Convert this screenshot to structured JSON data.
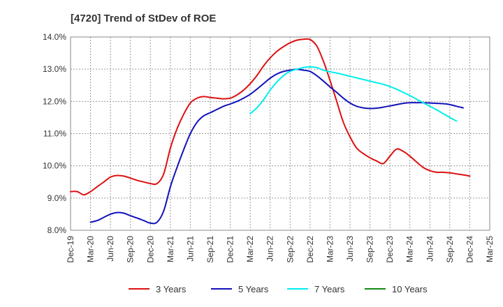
{
  "chart_data": {
    "type": "line",
    "title": "[4720]  Trend of StDev of ROE",
    "xlabel": "",
    "ylabel": "",
    "x_ticks": [
      "Dec-19",
      "Mar-20",
      "Jun-20",
      "Sep-20",
      "Dec-20",
      "Mar-21",
      "Jun-21",
      "Sep-21",
      "Dec-21",
      "Mar-22",
      "Jun-22",
      "Sep-22",
      "Dec-22",
      "Mar-23",
      "Jun-23",
      "Sep-23",
      "Dec-23",
      "Mar-24",
      "Jun-24",
      "Sep-24",
      "Dec-24",
      "Mar-25"
    ],
    "y_ticks": [
      "8.0%",
      "9.0%",
      "10.0%",
      "11.0%",
      "12.0%",
      "13.0%",
      "14.0%"
    ],
    "ylim": [
      8.0,
      14.0
    ],
    "y_unit": "%",
    "grid": true,
    "legend_position": "bottom",
    "series": [
      {
        "name": "3 Years",
        "color": "#dd1111",
        "points": [
          [
            0,
            9.2
          ],
          [
            1,
            9.2
          ],
          [
            2,
            9.1
          ],
          [
            3,
            9.2
          ],
          [
            4,
            9.35
          ],
          [
            5,
            9.5
          ],
          [
            6,
            9.65
          ],
          [
            7,
            9.7
          ],
          [
            8,
            9.68
          ],
          [
            9,
            9.62
          ],
          [
            10,
            9.55
          ],
          [
            11,
            9.5
          ],
          [
            12,
            9.45
          ],
          [
            13,
            9.45
          ],
          [
            14,
            9.75
          ],
          [
            15,
            10.55
          ],
          [
            16,
            11.15
          ],
          [
            17,
            11.6
          ],
          [
            18,
            11.95
          ],
          [
            19,
            12.1
          ],
          [
            20,
            12.15
          ],
          [
            21,
            12.12
          ],
          [
            22,
            12.1
          ],
          [
            23,
            12.08
          ],
          [
            24,
            12.1
          ],
          [
            25,
            12.2
          ],
          [
            26,
            12.35
          ],
          [
            27,
            12.55
          ],
          [
            28,
            12.8
          ],
          [
            29,
            13.1
          ],
          [
            30,
            13.35
          ],
          [
            31,
            13.55
          ],
          [
            32,
            13.7
          ],
          [
            33,
            13.82
          ],
          [
            34,
            13.9
          ],
          [
            35,
            13.93
          ],
          [
            36,
            13.92
          ],
          [
            37,
            13.72
          ],
          [
            38,
            13.25
          ],
          [
            39,
            12.65
          ],
          [
            40,
            12.0
          ],
          [
            41,
            11.35
          ],
          [
            42,
            10.9
          ],
          [
            43,
            10.55
          ],
          [
            44,
            10.38
          ],
          [
            45,
            10.25
          ],
          [
            46,
            10.15
          ],
          [
            47,
            10.07
          ],
          [
            48,
            10.3
          ],
          [
            49,
            10.52
          ],
          [
            50,
            10.45
          ],
          [
            51,
            10.3
          ],
          [
            52,
            10.12
          ],
          [
            53,
            9.95
          ],
          [
            54,
            9.85
          ],
          [
            55,
            9.8
          ],
          [
            56,
            9.8
          ],
          [
            57,
            9.78
          ],
          [
            58,
            9.75
          ],
          [
            59,
            9.72
          ],
          [
            60,
            9.68
          ]
        ]
      },
      {
        "name": "5 Years",
        "color": "#1111bb",
        "points": [
          [
            3,
            8.25
          ],
          [
            4,
            8.3
          ],
          [
            5,
            8.4
          ],
          [
            6,
            8.5
          ],
          [
            7,
            8.55
          ],
          [
            8,
            8.53
          ],
          [
            9,
            8.45
          ],
          [
            10,
            8.38
          ],
          [
            11,
            8.3
          ],
          [
            12,
            8.22
          ],
          [
            13,
            8.25
          ],
          [
            14,
            8.6
          ],
          [
            15,
            9.35
          ],
          [
            16,
            9.95
          ],
          [
            17,
            10.5
          ],
          [
            18,
            11.0
          ],
          [
            19,
            11.35
          ],
          [
            20,
            11.55
          ],
          [
            21,
            11.65
          ],
          [
            22,
            11.75
          ],
          [
            23,
            11.85
          ],
          [
            24,
            11.92
          ],
          [
            25,
            12.0
          ],
          [
            26,
            12.1
          ],
          [
            27,
            12.22
          ],
          [
            28,
            12.38
          ],
          [
            29,
            12.55
          ],
          [
            30,
            12.72
          ],
          [
            31,
            12.85
          ],
          [
            32,
            12.93
          ],
          [
            33,
            12.97
          ],
          [
            34,
            13.0
          ],
          [
            35,
            12.97
          ],
          [
            36,
            12.93
          ],
          [
            37,
            12.8
          ],
          [
            38,
            12.63
          ],
          [
            39,
            12.45
          ],
          [
            40,
            12.28
          ],
          [
            41,
            12.1
          ],
          [
            42,
            11.95
          ],
          [
            43,
            11.85
          ],
          [
            44,
            11.8
          ],
          [
            45,
            11.78
          ],
          [
            46,
            11.79
          ],
          [
            47,
            11.82
          ],
          [
            48,
            11.86
          ],
          [
            49,
            11.9
          ],
          [
            50,
            11.94
          ],
          [
            51,
            11.96
          ],
          [
            52,
            11.96
          ],
          [
            53,
            11.96
          ],
          [
            54,
            11.95
          ],
          [
            55,
            11.94
          ],
          [
            56,
            11.93
          ],
          [
            57,
            11.9
          ],
          [
            58,
            11.85
          ],
          [
            59,
            11.8
          ]
        ]
      },
      {
        "name": "7 Years",
        "color": "#00eeee",
        "points": [
          [
            27,
            11.62
          ],
          [
            28,
            11.8
          ],
          [
            29,
            12.05
          ],
          [
            30,
            12.35
          ],
          [
            31,
            12.6
          ],
          [
            32,
            12.8
          ],
          [
            33,
            12.93
          ],
          [
            34,
            13.0
          ],
          [
            35,
            13.05
          ],
          [
            36,
            13.07
          ],
          [
            37,
            13.05
          ],
          [
            38,
            12.97
          ],
          [
            39,
            12.92
          ],
          [
            40,
            12.88
          ],
          [
            41,
            12.83
          ],
          [
            42,
            12.78
          ],
          [
            43,
            12.73
          ],
          [
            44,
            12.68
          ],
          [
            45,
            12.63
          ],
          [
            46,
            12.58
          ],
          [
            47,
            12.53
          ],
          [
            48,
            12.46
          ],
          [
            49,
            12.38
          ],
          [
            50,
            12.28
          ],
          [
            51,
            12.18
          ],
          [
            52,
            12.07
          ],
          [
            53,
            11.96
          ],
          [
            54,
            11.85
          ],
          [
            55,
            11.74
          ],
          [
            56,
            11.62
          ],
          [
            57,
            11.5
          ],
          [
            58,
            11.39
          ]
        ]
      },
      {
        "name": "10 Years",
        "color": "#118811",
        "points": []
      }
    ]
  }
}
